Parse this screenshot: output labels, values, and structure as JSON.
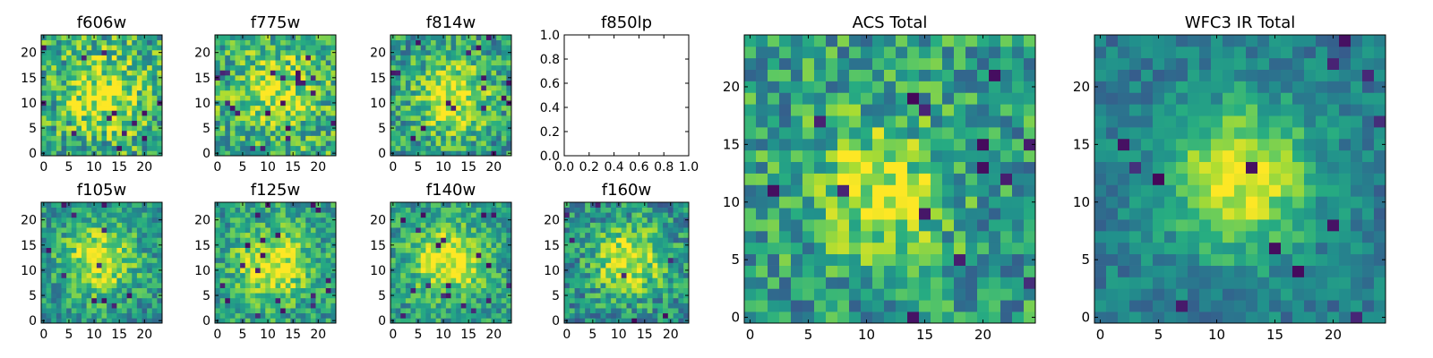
{
  "colors": {
    "background": "#ffffff",
    "axis": "#000000",
    "colormap": "viridis"
  },
  "chart_data": [
    {
      "id": "f606w",
      "type": "heatmap",
      "title": "f606w",
      "grid_size": [
        24,
        24
      ],
      "xlim": [
        -0.5,
        23.5
      ],
      "ylim": [
        -0.5,
        23.5
      ],
      "xticks": [
        0,
        5,
        10,
        15,
        20
      ],
      "xtick_labels": [
        "0",
        "5",
        "10",
        "15",
        "20"
      ],
      "yticks": [
        0,
        5,
        10,
        15,
        20
      ],
      "ytick_labels": [
        "0",
        "5",
        "10",
        "15",
        "20"
      ],
      "center": [
        12,
        12
      ],
      "sigma": 5,
      "peak": 0.35,
      "base": 0.62,
      "noise": 0.3,
      "seed": 11
    },
    {
      "id": "f775w",
      "type": "heatmap",
      "title": "f775w",
      "grid_size": [
        24,
        24
      ],
      "xlim": [
        -0.5,
        23.5
      ],
      "ylim": [
        -0.5,
        23.5
      ],
      "xticks": [
        0,
        5,
        10,
        15,
        20
      ],
      "xtick_labels": [
        "0",
        "5",
        "10",
        "15",
        "20"
      ],
      "yticks": [
        0,
        5,
        10,
        15,
        20
      ],
      "ytick_labels": [
        "0",
        "5",
        "10",
        "15",
        "20"
      ],
      "center": [
        12,
        12
      ],
      "sigma": 5,
      "peak": 0.3,
      "base": 0.63,
      "noise": 0.28,
      "seed": 23
    },
    {
      "id": "f814w",
      "type": "heatmap",
      "title": "f814w",
      "grid_size": [
        24,
        24
      ],
      "xlim": [
        -0.5,
        23.5
      ],
      "ylim": [
        -0.5,
        23.5
      ],
      "xticks": [
        0,
        5,
        10,
        15,
        20
      ],
      "xtick_labels": [
        "0",
        "5",
        "10",
        "15",
        "20"
      ],
      "yticks": [
        0,
        5,
        10,
        15,
        20
      ],
      "ytick_labels": [
        "0",
        "5",
        "10",
        "15",
        "20"
      ],
      "center": [
        12,
        11
      ],
      "sigma": 5,
      "peak": 0.45,
      "base": 0.55,
      "noise": 0.26,
      "seed": 37
    },
    {
      "id": "f850lp",
      "type": "empty",
      "title": "f850lp",
      "xlim": [
        0,
        1
      ],
      "ylim": [
        0,
        1
      ],
      "xticks": [
        0,
        0.2,
        0.4,
        0.6,
        0.8,
        1.0
      ],
      "xtick_labels": [
        "0.0",
        "0.2",
        "0.4",
        "0.6",
        "0.8",
        "1.0"
      ],
      "yticks": [
        0,
        0.2,
        0.4,
        0.6,
        0.8,
        1.0
      ],
      "ytick_labels": [
        "0.0",
        "0.2",
        "0.4",
        "0.6",
        "0.8",
        "1.0"
      ]
    },
    {
      "id": "f105w",
      "type": "heatmap",
      "title": "f105w",
      "grid_size": [
        24,
        24
      ],
      "xlim": [
        -0.5,
        23.5
      ],
      "ylim": [
        -0.5,
        23.5
      ],
      "xticks": [
        0,
        5,
        10,
        15,
        20
      ],
      "xtick_labels": [
        "0",
        "5",
        "10",
        "15",
        "20"
      ],
      "yticks": [
        0,
        5,
        10,
        15,
        20
      ],
      "ytick_labels": [
        "0",
        "5",
        "10",
        "15",
        "20"
      ],
      "center": [
        11,
        12
      ],
      "sigma": 5,
      "peak": 0.45,
      "base": 0.52,
      "noise": 0.22,
      "seed": 53
    },
    {
      "id": "f125w",
      "type": "heatmap",
      "title": "f125w",
      "grid_size": [
        24,
        24
      ],
      "xlim": [
        -0.5,
        23.5
      ],
      "ylim": [
        -0.5,
        23.5
      ],
      "xticks": [
        0,
        5,
        10,
        15,
        20
      ],
      "xtick_labels": [
        "0",
        "5",
        "10",
        "15",
        "20"
      ],
      "yticks": [
        0,
        5,
        10,
        15,
        20
      ],
      "ytick_labels": [
        "0",
        "5",
        "10",
        "15",
        "20"
      ],
      "center": [
        11,
        11
      ],
      "sigma": 5,
      "peak": 0.45,
      "base": 0.55,
      "noise": 0.22,
      "seed": 71
    },
    {
      "id": "f140w",
      "type": "heatmap",
      "title": "f140w",
      "grid_size": [
        24,
        24
      ],
      "xlim": [
        -0.5,
        23.5
      ],
      "ylim": [
        -0.5,
        23.5
      ],
      "xticks": [
        0,
        5,
        10,
        15,
        20
      ],
      "xtick_labels": [
        "0",
        "5",
        "10",
        "15",
        "20"
      ],
      "yticks": [
        0,
        5,
        10,
        15,
        20
      ],
      "ytick_labels": [
        "0",
        "5",
        "10",
        "15",
        "20"
      ],
      "center": [
        11,
        12
      ],
      "sigma": 5,
      "peak": 0.45,
      "base": 0.55,
      "noise": 0.22,
      "seed": 89
    },
    {
      "id": "f160w",
      "type": "heatmap",
      "title": "f160w",
      "grid_size": [
        24,
        24
      ],
      "xlim": [
        -0.5,
        23.5
      ],
      "ylim": [
        -0.5,
        23.5
      ],
      "xticks": [
        0,
        5,
        10,
        15,
        20
      ],
      "xtick_labels": [
        "0",
        "5",
        "10",
        "15",
        "20"
      ],
      "yticks": [
        0,
        5,
        10,
        15,
        20
      ],
      "ytick_labels": [
        "0",
        "5",
        "10",
        "15",
        "20"
      ],
      "center": [
        12,
        12
      ],
      "sigma": 5,
      "peak": 0.5,
      "base": 0.48,
      "noise": 0.24,
      "seed": 97
    },
    {
      "id": "acs-total",
      "type": "heatmap",
      "title": "ACS Total",
      "grid_size": [
        25,
        25
      ],
      "xlim": [
        -0.5,
        24.5
      ],
      "ylim": [
        -0.5,
        24.5
      ],
      "xticks": [
        0,
        5,
        10,
        15,
        20
      ],
      "xtick_labels": [
        "0",
        "5",
        "10",
        "15",
        "20"
      ],
      "yticks": [
        0,
        5,
        10,
        15,
        20
      ],
      "ytick_labels": [
        "0",
        "5",
        "10",
        "15",
        "20"
      ],
      "center": [
        11,
        11
      ],
      "sigma": 4,
      "peak": 0.4,
      "base": 0.55,
      "noise": 0.26,
      "seed": 131
    },
    {
      "id": "wfc3-ir-total",
      "type": "heatmap",
      "title": "WFC3 IR Total",
      "grid_size": [
        25,
        25
      ],
      "xlim": [
        -0.5,
        24.5
      ],
      "ylim": [
        -0.5,
        24.5
      ],
      "xticks": [
        0,
        5,
        10,
        15,
        20
      ],
      "xtick_labels": [
        "0",
        "5",
        "10",
        "15",
        "20"
      ],
      "yticks": [
        0,
        5,
        10,
        15,
        20
      ],
      "ytick_labels": [
        "0",
        "5",
        "10",
        "15",
        "20"
      ],
      "center": [
        12,
        12
      ],
      "sigma": 4.5,
      "peak": 0.55,
      "base": 0.42,
      "noise": 0.14,
      "seed": 173
    }
  ]
}
